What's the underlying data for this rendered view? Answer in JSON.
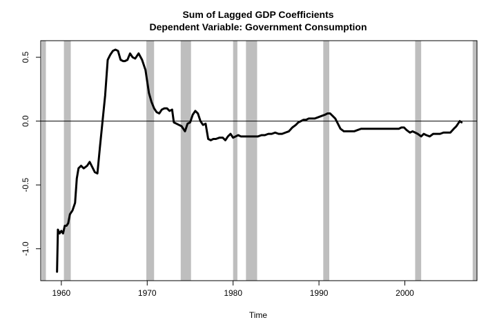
{
  "chart_data": {
    "type": "line",
    "title": "Sum of Lagged GDP Coefficients",
    "subtitle": "Dependent Variable: Government Consumption",
    "xlabel": "Time",
    "ylabel": "",
    "xlim": [
      1957.6,
      2008.4
    ],
    "ylim": [
      -1.25,
      0.63
    ],
    "x_ticks": [
      1960,
      1970,
      1980,
      1990,
      2000
    ],
    "x_tick_labels": [
      "1960",
      "1970",
      "1980",
      "1990",
      "2000"
    ],
    "y_ticks": [
      -1.0,
      -0.5,
      0.0,
      0.5
    ],
    "y_tick_labels": [
      "-1.0",
      "-0.5",
      "0.0",
      "0.5"
    ],
    "reference_line_y": 0.0,
    "grid": false,
    "legend": "none",
    "recession_color": "#bebebe",
    "line_color": "#000000",
    "recession_shading": [
      [
        1957.7,
        1958.2
      ],
      [
        1960.3,
        1961.1
      ],
      [
        1969.9,
        1970.8
      ],
      [
        1973.9,
        1975.1
      ],
      [
        1980.0,
        1980.5
      ],
      [
        1981.5,
        1982.8
      ],
      [
        1990.5,
        1991.2
      ],
      [
        2001.2,
        2001.9
      ],
      [
        2007.9,
        2008.4
      ]
    ],
    "series": [
      {
        "x": [
          1959.5,
          1959.6,
          1959.8,
          1960.0,
          1960.2,
          1960.4,
          1960.6,
          1960.8,
          1961.0,
          1961.3,
          1961.6,
          1961.8,
          1962.0,
          1962.3,
          1962.6,
          1963.0,
          1963.3,
          1963.6,
          1963.9,
          1964.2,
          1964.5,
          1964.8,
          1965.1,
          1965.4,
          1965.7,
          1966.0,
          1966.3,
          1966.6,
          1966.9,
          1967.2,
          1967.4,
          1967.7,
          1968.0,
          1968.3,
          1968.6,
          1969.0,
          1969.4,
          1969.8,
          1970.2,
          1970.5,
          1970.8,
          1971.1,
          1971.4,
          1971.7,
          1972.0,
          1972.3,
          1972.6,
          1972.9,
          1973.1,
          1973.4,
          1973.7,
          1974.0,
          1974.4,
          1974.7,
          1975.0,
          1975.3,
          1975.6,
          1975.9,
          1976.2,
          1976.5,
          1976.8,
          1977.1,
          1977.4,
          1977.7,
          1978.0,
          1978.4,
          1978.8,
          1979.1,
          1979.4,
          1979.7,
          1980.0,
          1980.3,
          1980.6,
          1980.9,
          1981.2,
          1981.5,
          1981.8,
          1982.1,
          1982.5,
          1982.9,
          1983.3,
          1983.7,
          1984.1,
          1984.5,
          1984.9,
          1985.3,
          1985.7,
          1986.1,
          1986.5,
          1986.9,
          1987.3,
          1987.6,
          1987.9,
          1988.2,
          1988.5,
          1988.8,
          1989.1,
          1989.5,
          1989.9,
          1990.3,
          1990.7,
          1991.0,
          1991.3,
          1991.6,
          1991.9,
          1992.2,
          1992.5,
          1992.9,
          1993.3,
          1993.7,
          1994.1,
          1994.5,
          1994.9,
          1995.3,
          1995.7,
          1996.1,
          1996.5,
          1996.9,
          1997.3,
          1997.7,
          1998.1,
          1998.5,
          1998.9,
          1999.3,
          1999.6,
          1999.9,
          2000.2,
          2000.6,
          2000.9,
          2001.2,
          2001.5,
          2001.9,
          2002.2,
          2002.5,
          2002.9,
          2003.3,
          2003.7,
          2004.1,
          2004.5,
          2004.9,
          2005.3,
          2005.7,
          2006.0,
          2006.2,
          2006.4,
          2006.6
        ],
        "y": [
          -1.18,
          -0.85,
          -0.88,
          -0.86,
          -0.88,
          -0.82,
          -0.82,
          -0.8,
          -0.73,
          -0.7,
          -0.64,
          -0.45,
          -0.37,
          -0.35,
          -0.37,
          -0.35,
          -0.32,
          -0.36,
          -0.4,
          -0.41,
          -0.2,
          0.0,
          0.2,
          0.48,
          0.52,
          0.55,
          0.56,
          0.55,
          0.48,
          0.47,
          0.47,
          0.48,
          0.53,
          0.5,
          0.49,
          0.53,
          0.48,
          0.4,
          0.22,
          0.15,
          0.1,
          0.07,
          0.06,
          0.09,
          0.1,
          0.1,
          0.08,
          0.09,
          -0.01,
          -0.02,
          -0.03,
          -0.04,
          -0.08,
          -0.02,
          -0.01,
          0.05,
          0.08,
          0.06,
          0.0,
          -0.03,
          -0.02,
          -0.14,
          -0.15,
          -0.14,
          -0.14,
          -0.13,
          -0.13,
          -0.15,
          -0.12,
          -0.1,
          -0.13,
          -0.12,
          -0.11,
          -0.12,
          -0.12,
          -0.12,
          -0.12,
          -0.12,
          -0.12,
          -0.12,
          -0.11,
          -0.11,
          -0.1,
          -0.1,
          -0.09,
          -0.1,
          -0.1,
          -0.09,
          -0.08,
          -0.05,
          -0.03,
          -0.01,
          0.0,
          0.01,
          0.01,
          0.02,
          0.02,
          0.02,
          0.03,
          0.04,
          0.05,
          0.06,
          0.06,
          0.04,
          0.02,
          -0.02,
          -0.06,
          -0.08,
          -0.08,
          -0.08,
          -0.08,
          -0.07,
          -0.06,
          -0.06,
          -0.06,
          -0.06,
          -0.06,
          -0.06,
          -0.06,
          -0.06,
          -0.06,
          -0.06,
          -0.06,
          -0.06,
          -0.05,
          -0.05,
          -0.07,
          -0.09,
          -0.08,
          -0.09,
          -0.1,
          -0.12,
          -0.1,
          -0.11,
          -0.12,
          -0.1,
          -0.1,
          -0.1,
          -0.09,
          -0.09,
          -0.09,
          -0.06,
          -0.04,
          -0.02,
          0.0,
          -0.01
        ]
      }
    ]
  }
}
